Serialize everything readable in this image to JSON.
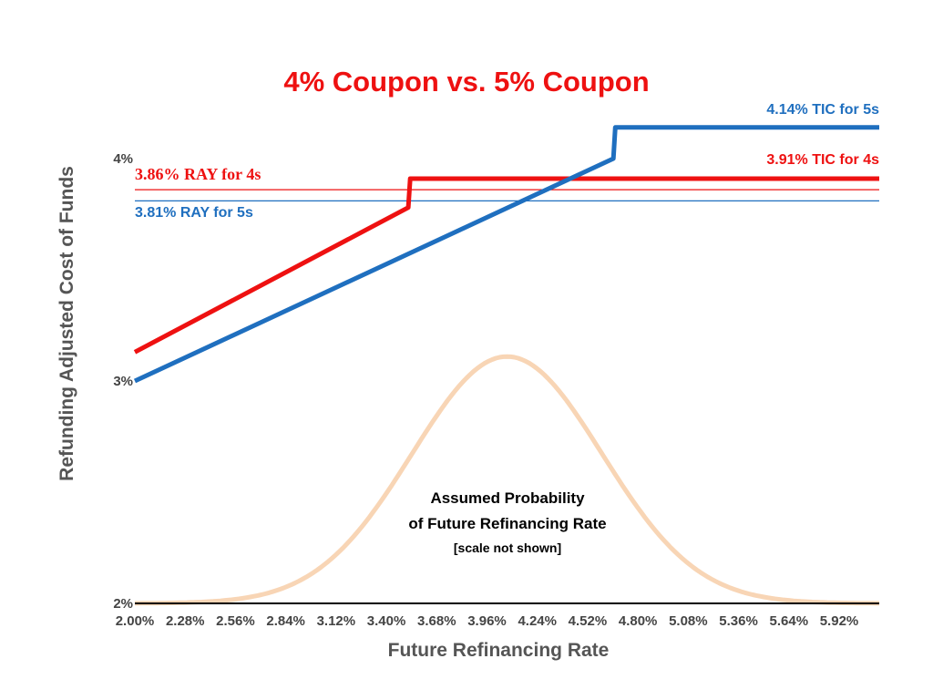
{
  "chart_data": {
    "type": "line",
    "title": "4% Coupon vs. 5% Coupon",
    "xlabel": "Future Refinancing Rate",
    "ylabel": "Refunding Adjusted Cost of Funds",
    "x_ticks": [
      "2.00%",
      "2.28%",
      "2.56%",
      "2.84%",
      "3.12%",
      "3.40%",
      "3.68%",
      "3.96%",
      "4.24%",
      "4.52%",
      "4.80%",
      "5.08%",
      "5.36%",
      "5.64%",
      "5.92%"
    ],
    "y_ticks": [
      "2%",
      "3%",
      "4%"
    ],
    "xlim": [
      2.0,
      5.92
    ],
    "ylim": [
      2.0,
      4.0
    ],
    "grid": false,
    "colors": {
      "red": "#ee1111",
      "blue": "#1f6fbf",
      "distribution": "#f8d5b5",
      "axis": "#000000"
    },
    "series": [
      {
        "name": "4s",
        "color": "#ee1111",
        "x": [
          2.0,
          3.44,
          3.45,
          5.92
        ],
        "y": [
          3.13,
          3.78,
          3.91,
          3.91
        ]
      },
      {
        "name": "5s",
        "color": "#1f6fbf",
        "x": [
          2.0,
          4.52,
          4.53,
          5.92
        ],
        "y": [
          3.0,
          4.0,
          4.14,
          4.14
        ]
      }
    ],
    "reference_lines": [
      {
        "label": "3.86% RAY for 4s",
        "y": 3.86,
        "color": "#ee1111"
      },
      {
        "label": "3.81% RAY for 5s",
        "y": 3.81,
        "color": "#1f6fbf"
      }
    ],
    "annotations": [
      {
        "text": "4.14% TIC for 5s",
        "color": "#1f6fbf"
      },
      {
        "text": "3.91% TIC for 4s",
        "color": "#ee1111"
      }
    ],
    "distribution": {
      "label_line1": "Assumed Probability",
      "label_line2": "of Future Refinancing Rate",
      "label_line3": "[scale not shown]",
      "mean": 3.96,
      "sd": 0.5,
      "peak_y": 3.11,
      "base_y": 2.0
    }
  }
}
